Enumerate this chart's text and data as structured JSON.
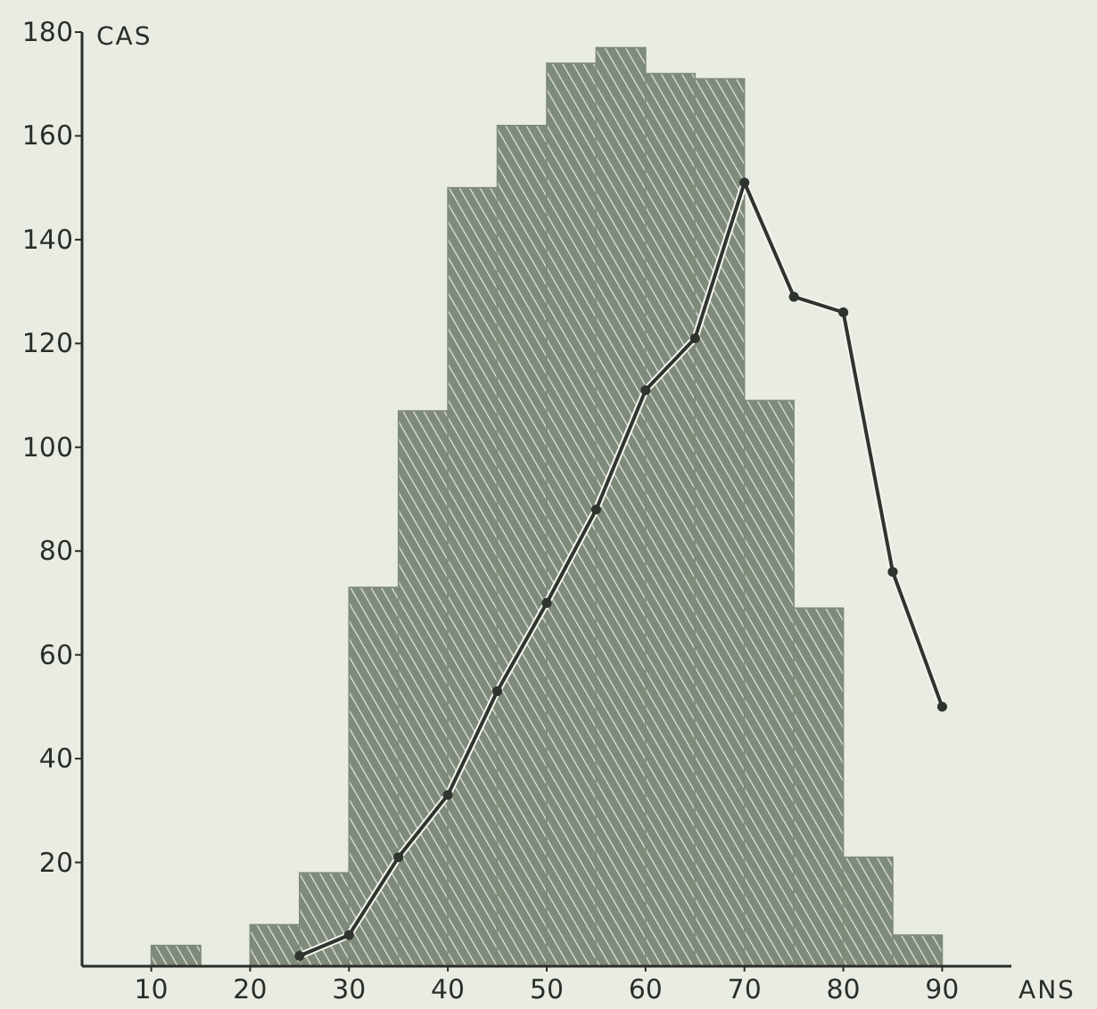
{
  "chart_data": {
    "type": "histogram",
    "xlabel": "ANS",
    "ylabel": "CAS",
    "bins": [
      10,
      15,
      20,
      25,
      30,
      35,
      40,
      45,
      50,
      55,
      60,
      65,
      70,
      75,
      80,
      85,
      90
    ],
    "values": [
      4,
      0,
      8,
      18,
      73,
      107,
      150,
      162,
      174,
      177,
      172,
      171,
      109,
      69,
      21,
      6
    ],
    "color": "#7e8a7a",
    "series": [
      {
        "type": "line",
        "color": "#2f352e",
        "x": [
          25,
          30,
          35,
          40,
          45,
          50,
          55,
          60,
          65,
          70,
          75,
          80,
          85,
          90
        ],
        "values": [
          2,
          6,
          21,
          33,
          53,
          70,
          88,
          111,
          121,
          151,
          129,
          126,
          76,
          50
        ]
      }
    ],
    "marker": "circle",
    "xlim": [
      3,
      97
    ],
    "xticks": [
      10,
      20,
      30,
      40,
      50,
      60,
      70,
      80,
      90
    ],
    "ylim": [
      0,
      180
    ],
    "yticks": [
      20,
      40,
      60,
      80,
      100,
      120,
      140,
      160,
      180
    ],
    "grid": false
  }
}
